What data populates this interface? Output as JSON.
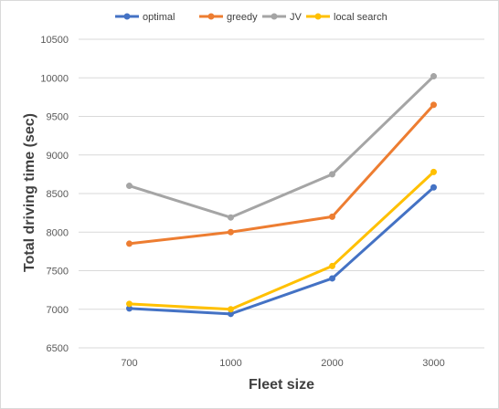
{
  "chart_data": {
    "type": "line",
    "categories": [
      "700",
      "1000",
      "2000",
      "3000"
    ],
    "series": [
      {
        "name": "optimal",
        "color": "#4472C4",
        "values": [
          7010,
          6940,
          7400,
          8580
        ]
      },
      {
        "name": "greedy",
        "color": "#ED7D31",
        "values": [
          7850,
          8000,
          8200,
          9650
        ]
      },
      {
        "name": "JV",
        "color": "#A5A5A5",
        "values": [
          8600,
          8190,
          8750,
          10020
        ]
      },
      {
        "name": "local search",
        "color": "#FFC000",
        "values": [
          7070,
          7000,
          7560,
          8780
        ]
      }
    ],
    "title": "",
    "xlabel": "Fleet size",
    "ylabel": "Total driving time (sec)",
    "ylim": [
      6500,
      10500
    ],
    "yticks": [
      "6500",
      "7000",
      "7500",
      "8000",
      "8500",
      "9000",
      "9500",
      "10000",
      "10500"
    ],
    "grid": true,
    "legend_position": "top"
  }
}
